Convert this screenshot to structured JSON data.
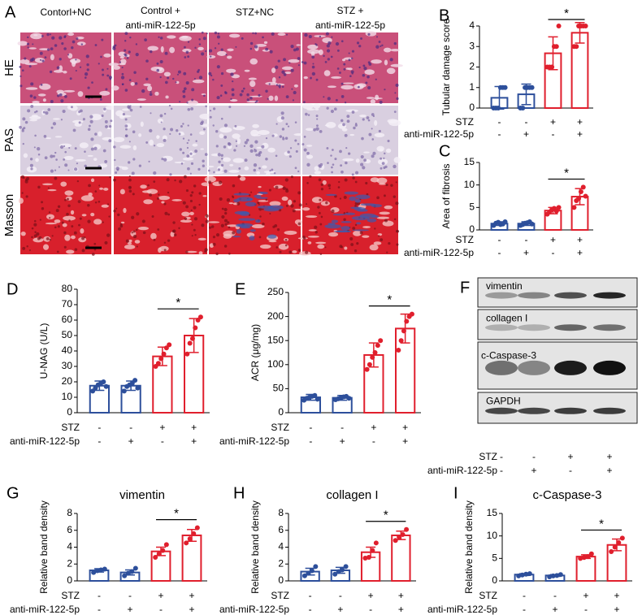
{
  "panel_a": {
    "label": "A",
    "columns": [
      [
        "Contorl+NC"
      ],
      [
        "Control +",
        "anti-miR-122-5p"
      ],
      [
        "STZ+NC"
      ],
      [
        "STZ +",
        "anti-miR-122-5p"
      ]
    ],
    "rows": [
      "HE",
      "PAS",
      "Masson"
    ]
  },
  "panel_f": {
    "label": "F",
    "blots": [
      "vimentin",
      "collagen I",
      "c-Caspase-3",
      "GAPDH"
    ],
    "conditions": [
      {
        "name": "STZ",
        "values": [
          "-",
          "-",
          "+",
          "+"
        ]
      },
      {
        "name": "anti-miR-122-5p",
        "values": [
          "-",
          "+",
          "-",
          "+"
        ]
      }
    ]
  },
  "chart_data": [
    {
      "type": "bar",
      "panel": "B",
      "ylabel": "Tubular damage score",
      "ylim": [
        0,
        4
      ],
      "yticks": [
        0,
        1,
        2,
        3,
        4
      ],
      "colors": [
        "#2d4f9b",
        "#2d4f9b",
        "#e01f2d",
        "#e01f2d"
      ],
      "values": [
        0.5,
        0.67,
        2.67,
        3.67
      ],
      "errors": [
        0.55,
        0.5,
        0.8,
        0.5
      ],
      "points": [
        [
          0,
          0,
          0,
          1,
          1,
          1
        ],
        [
          0,
          0,
          1,
          1,
          1,
          1
        ],
        [
          2,
          2,
          2,
          3,
          3,
          4
        ],
        [
          3,
          3,
          4,
          4,
          4,
          4
        ]
      ],
      "conditions": [
        {
          "name": "STZ",
          "values": [
            "-",
            "-",
            "+",
            "+"
          ]
        },
        {
          "name": "anti-miR-122-5p",
          "values": [
            "-",
            "+",
            "-",
            "+"
          ]
        }
      ],
      "significance": "*"
    },
    {
      "type": "bar",
      "panel": "C",
      "ylabel": "Area of fibrosis",
      "ylim": [
        0,
        15
      ],
      "yticks": [
        0,
        5,
        10,
        15
      ],
      "colors": [
        "#2d4f9b",
        "#2d4f9b",
        "#e01f2d",
        "#e01f2d"
      ],
      "values": [
        1.4,
        1.4,
        4.3,
        7.4
      ],
      "errors": [
        0.4,
        0.4,
        0.7,
        1.8
      ],
      "points": [
        [
          1.0,
          1.5,
          1.7,
          1.2,
          1.3,
          1.8
        ],
        [
          1.0,
          1.2,
          1.5,
          1.6,
          1.8,
          1.3
        ],
        [
          3.5,
          4.0,
          4.5,
          4.8,
          4.2,
          5.0
        ],
        [
          5.0,
          6.5,
          7.0,
          8.5,
          9.5,
          7.5
        ]
      ],
      "conditions": [
        {
          "name": "STZ",
          "values": [
            "-",
            "-",
            "+",
            "+"
          ]
        },
        {
          "name": "anti-miR-122-5p",
          "values": [
            "-",
            "+",
            "-",
            "+"
          ]
        }
      ],
      "significance": "*"
    },
    {
      "type": "bar",
      "panel": "D",
      "ylabel": "U-NAG (U/L)",
      "ylim": [
        0,
        80
      ],
      "yticks": [
        0,
        10,
        20,
        30,
        40,
        50,
        60,
        70,
        80
      ],
      "colors": [
        "#2d4f9b",
        "#2d4f9b",
        "#e01f2d",
        "#e01f2d"
      ],
      "values": [
        17.5,
        17.5,
        36.5,
        50
      ],
      "errors": [
        3,
        3,
        6,
        11
      ],
      "points": [
        [
          14,
          16,
          18,
          19,
          20,
          17
        ],
        [
          14,
          17,
          18,
          19,
          21,
          16
        ],
        [
          30,
          32,
          35,
          38,
          42,
          44
        ],
        [
          38,
          45,
          48,
          55,
          60,
          62
        ]
      ],
      "conditions": [
        {
          "name": "STZ",
          "values": [
            "-",
            "-",
            "+",
            "+"
          ]
        },
        {
          "name": "anti-miR-122-5p",
          "values": [
            "-",
            "+",
            "-",
            "+"
          ]
        }
      ],
      "significance": "*"
    },
    {
      "type": "bar",
      "panel": "E",
      "ylabel": "ACR (μg/mg)",
      "ylim": [
        0,
        250
      ],
      "yticks": [
        0,
        50,
        100,
        150,
        200,
        250
      ],
      "colors": [
        "#2d4f9b",
        "#2d4f9b",
        "#e01f2d",
        "#e01f2d"
      ],
      "values": [
        32,
        31,
        120,
        175
      ],
      "errors": [
        6,
        5,
        25,
        30
      ],
      "points": [
        [
          26,
          30,
          32,
          34,
          36,
          28
        ],
        [
          27,
          29,
          31,
          33,
          34,
          30
        ],
        [
          90,
          100,
          115,
          125,
          140,
          150
        ],
        [
          130,
          150,
          170,
          190,
          200,
          205
        ]
      ],
      "conditions": [
        {
          "name": "STZ",
          "values": [
            "-",
            "-",
            "+",
            "+"
          ]
        },
        {
          "name": "anti-miR-122-5p",
          "values": [
            "-",
            "+",
            "-",
            "+"
          ]
        }
      ],
      "significance": "*"
    },
    {
      "type": "bar",
      "panel": "G",
      "title": "vimentin",
      "ylabel": "Relative band density",
      "ylim": [
        0,
        8
      ],
      "yticks": [
        0,
        2,
        4,
        6,
        8
      ],
      "colors": [
        "#2d4f9b",
        "#2d4f9b",
        "#e01f2d",
        "#e01f2d"
      ],
      "values": [
        1.25,
        1.0,
        3.5,
        5.4
      ],
      "errors": [
        0.2,
        0.3,
        0.5,
        0.7
      ],
      "points": [
        [
          1.0,
          1.2,
          1.3,
          1.4
        ],
        [
          0.6,
          0.9,
          1.1,
          1.5
        ],
        [
          2.8,
          3.2,
          3.6,
          4.3
        ],
        [
          4.5,
          5.0,
          5.6,
          6.3
        ]
      ],
      "conditions": [
        {
          "name": "STZ",
          "values": [
            "-",
            "-",
            "+",
            "+"
          ]
        },
        {
          "name": "anti-miR-122-5p",
          "values": [
            "-",
            "+",
            "-",
            "+"
          ]
        }
      ],
      "significance": "*"
    },
    {
      "type": "bar",
      "panel": "H",
      "title": "collagen I",
      "ylabel": "Relative band density",
      "ylim": [
        0,
        8
      ],
      "yticks": [
        0,
        2,
        4,
        6,
        8
      ],
      "colors": [
        "#2d4f9b",
        "#2d4f9b",
        "#e01f2d",
        "#e01f2d"
      ],
      "values": [
        1.1,
        1.25,
        3.4,
        5.4
      ],
      "errors": [
        0.4,
        0.35,
        0.6,
        0.5
      ],
      "points": [
        [
          0.6,
          0.9,
          1.2,
          1.7
        ],
        [
          0.8,
          1.1,
          1.3,
          1.7
        ],
        [
          2.7,
          2.8,
          3.6,
          4.5
        ],
        [
          4.8,
          5.2,
          5.5,
          6.1
        ]
      ],
      "conditions": [
        {
          "name": "STZ",
          "values": [
            "-",
            "-",
            "+",
            "+"
          ]
        },
        {
          "name": "anti-miR-122-5p",
          "values": [
            "-",
            "+",
            "-",
            "+"
          ]
        }
      ],
      "significance": "*"
    },
    {
      "type": "bar",
      "panel": "I",
      "title": "c-Caspase-3",
      "ylabel": "Relative band density",
      "ylim": [
        0,
        15
      ],
      "yticks": [
        0,
        5,
        10,
        15
      ],
      "colors": [
        "#2d4f9b",
        "#2d4f9b",
        "#e01f2d",
        "#e01f2d"
      ],
      "values": [
        1.4,
        1.2,
        5.4,
        8.0
      ],
      "errors": [
        0.2,
        0.2,
        0.4,
        1.3
      ],
      "points": [
        [
          1.1,
          1.3,
          1.5,
          1.6
        ],
        [
          0.9,
          1.1,
          1.2,
          1.4
        ],
        [
          5.0,
          5.2,
          5.4,
          6.0
        ],
        [
          6.5,
          7.5,
          8.5,
          9.5
        ]
      ],
      "conditions": [
        {
          "name": "STZ",
          "values": [
            "-",
            "-",
            "+",
            "+"
          ]
        },
        {
          "name": "anti-miR-122-5p",
          "values": [
            "-",
            "+",
            "-",
            "+"
          ]
        }
      ],
      "significance": "*"
    }
  ]
}
